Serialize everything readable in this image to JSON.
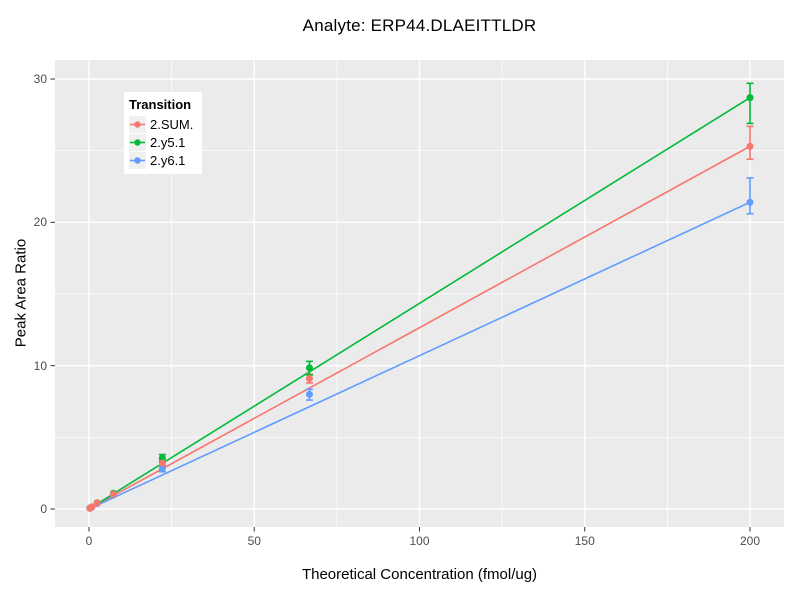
{
  "chart_data": {
    "type": "scatter",
    "title": "Analyte: ERP44.DLAEITTLDR",
    "xlabel": "Theoretical Concentration (fmol/ug)",
    "ylabel": "Peak Area Ratio",
    "xlim": [
      -10.3,
      210.3
    ],
    "ylim": [
      -1.3,
      31.3
    ],
    "grid": "major and minor white gridlines on gray panel",
    "panel_bg": "#EBEBEB",
    "grid_color": "#FFFFFF",
    "legend_key_bg": "#F0F0F0",
    "tick_mark_color": "#333333",
    "tick_label_color": "#4D4D4D",
    "x_ticks": [
      {
        "v": 0,
        "label": "0"
      },
      {
        "v": 50,
        "label": "50"
      },
      {
        "v": 100,
        "label": "100"
      },
      {
        "v": 150,
        "label": "150"
      },
      {
        "v": 200,
        "label": "200"
      }
    ],
    "y_ticks": [
      {
        "v": 0,
        "label": "0"
      },
      {
        "v": 10,
        "label": "10"
      },
      {
        "v": 20,
        "label": "20"
      },
      {
        "v": 30,
        "label": "30"
      }
    ],
    "x_minor_gridlines": [
      25,
      75,
      125,
      175
    ],
    "y_minor_gridlines": [
      5,
      15,
      25
    ],
    "legend": {
      "title": "Transition",
      "position": "top-left-inside"
    },
    "series": [
      {
        "name": "2.SUM.",
        "color": "#F8766D",
        "fit_line": {
          "x": [
            0,
            200
          ],
          "y": [
            0,
            25.3
          ]
        },
        "points": [
          {
            "x": 0.25,
            "y": 0.05
          },
          {
            "x": 0.82,
            "y": 0.13
          },
          {
            "x": 2.47,
            "y": 0.42
          },
          {
            "x": 7.41,
            "y": 1.05
          },
          {
            "x": 22.2,
            "y": 3.2,
            "err_lo": 3.0,
            "err_hi": 3.4
          },
          {
            "x": 66.7,
            "y": 9.1,
            "err_lo": 8.8,
            "err_hi": 9.4
          },
          {
            "x": 200,
            "y": 25.3,
            "err_lo": 24.4,
            "err_hi": 26.7
          }
        ]
      },
      {
        "name": "2.y5.1",
        "color": "#00BA38",
        "fit_line": {
          "x": [
            0,
            200
          ],
          "y": [
            0,
            28.7
          ]
        },
        "points": [
          {
            "x": 0.25,
            "y": 0.06
          },
          {
            "x": 0.82,
            "y": 0.14
          },
          {
            "x": 2.47,
            "y": 0.44
          },
          {
            "x": 7.41,
            "y": 1.1
          },
          {
            "x": 22.2,
            "y": 3.55,
            "err_lo": 3.3,
            "err_hi": 3.8
          },
          {
            "x": 66.7,
            "y": 9.85,
            "err_lo": 9.35,
            "err_hi": 10.3
          },
          {
            "x": 200,
            "y": 28.7,
            "err_lo": 26.9,
            "err_hi": 29.7
          }
        ]
      },
      {
        "name": "2.y6.1",
        "color": "#619CFF",
        "fit_line": {
          "x": [
            0,
            200
          ],
          "y": [
            0,
            21.4
          ]
        },
        "points": [
          {
            "x": 0.25,
            "y": 0.05
          },
          {
            "x": 0.82,
            "y": 0.12
          },
          {
            "x": 2.47,
            "y": 0.38
          },
          {
            "x": 7.41,
            "y": 0.98
          },
          {
            "x": 22.2,
            "y": 2.8,
            "err_lo": 2.6,
            "err_hi": 3.0
          },
          {
            "x": 66.7,
            "y": 8.0,
            "err_lo": 7.6,
            "err_hi": 8.35
          },
          {
            "x": 200,
            "y": 21.4,
            "err_lo": 20.6,
            "err_hi": 23.1
          }
        ]
      }
    ]
  }
}
